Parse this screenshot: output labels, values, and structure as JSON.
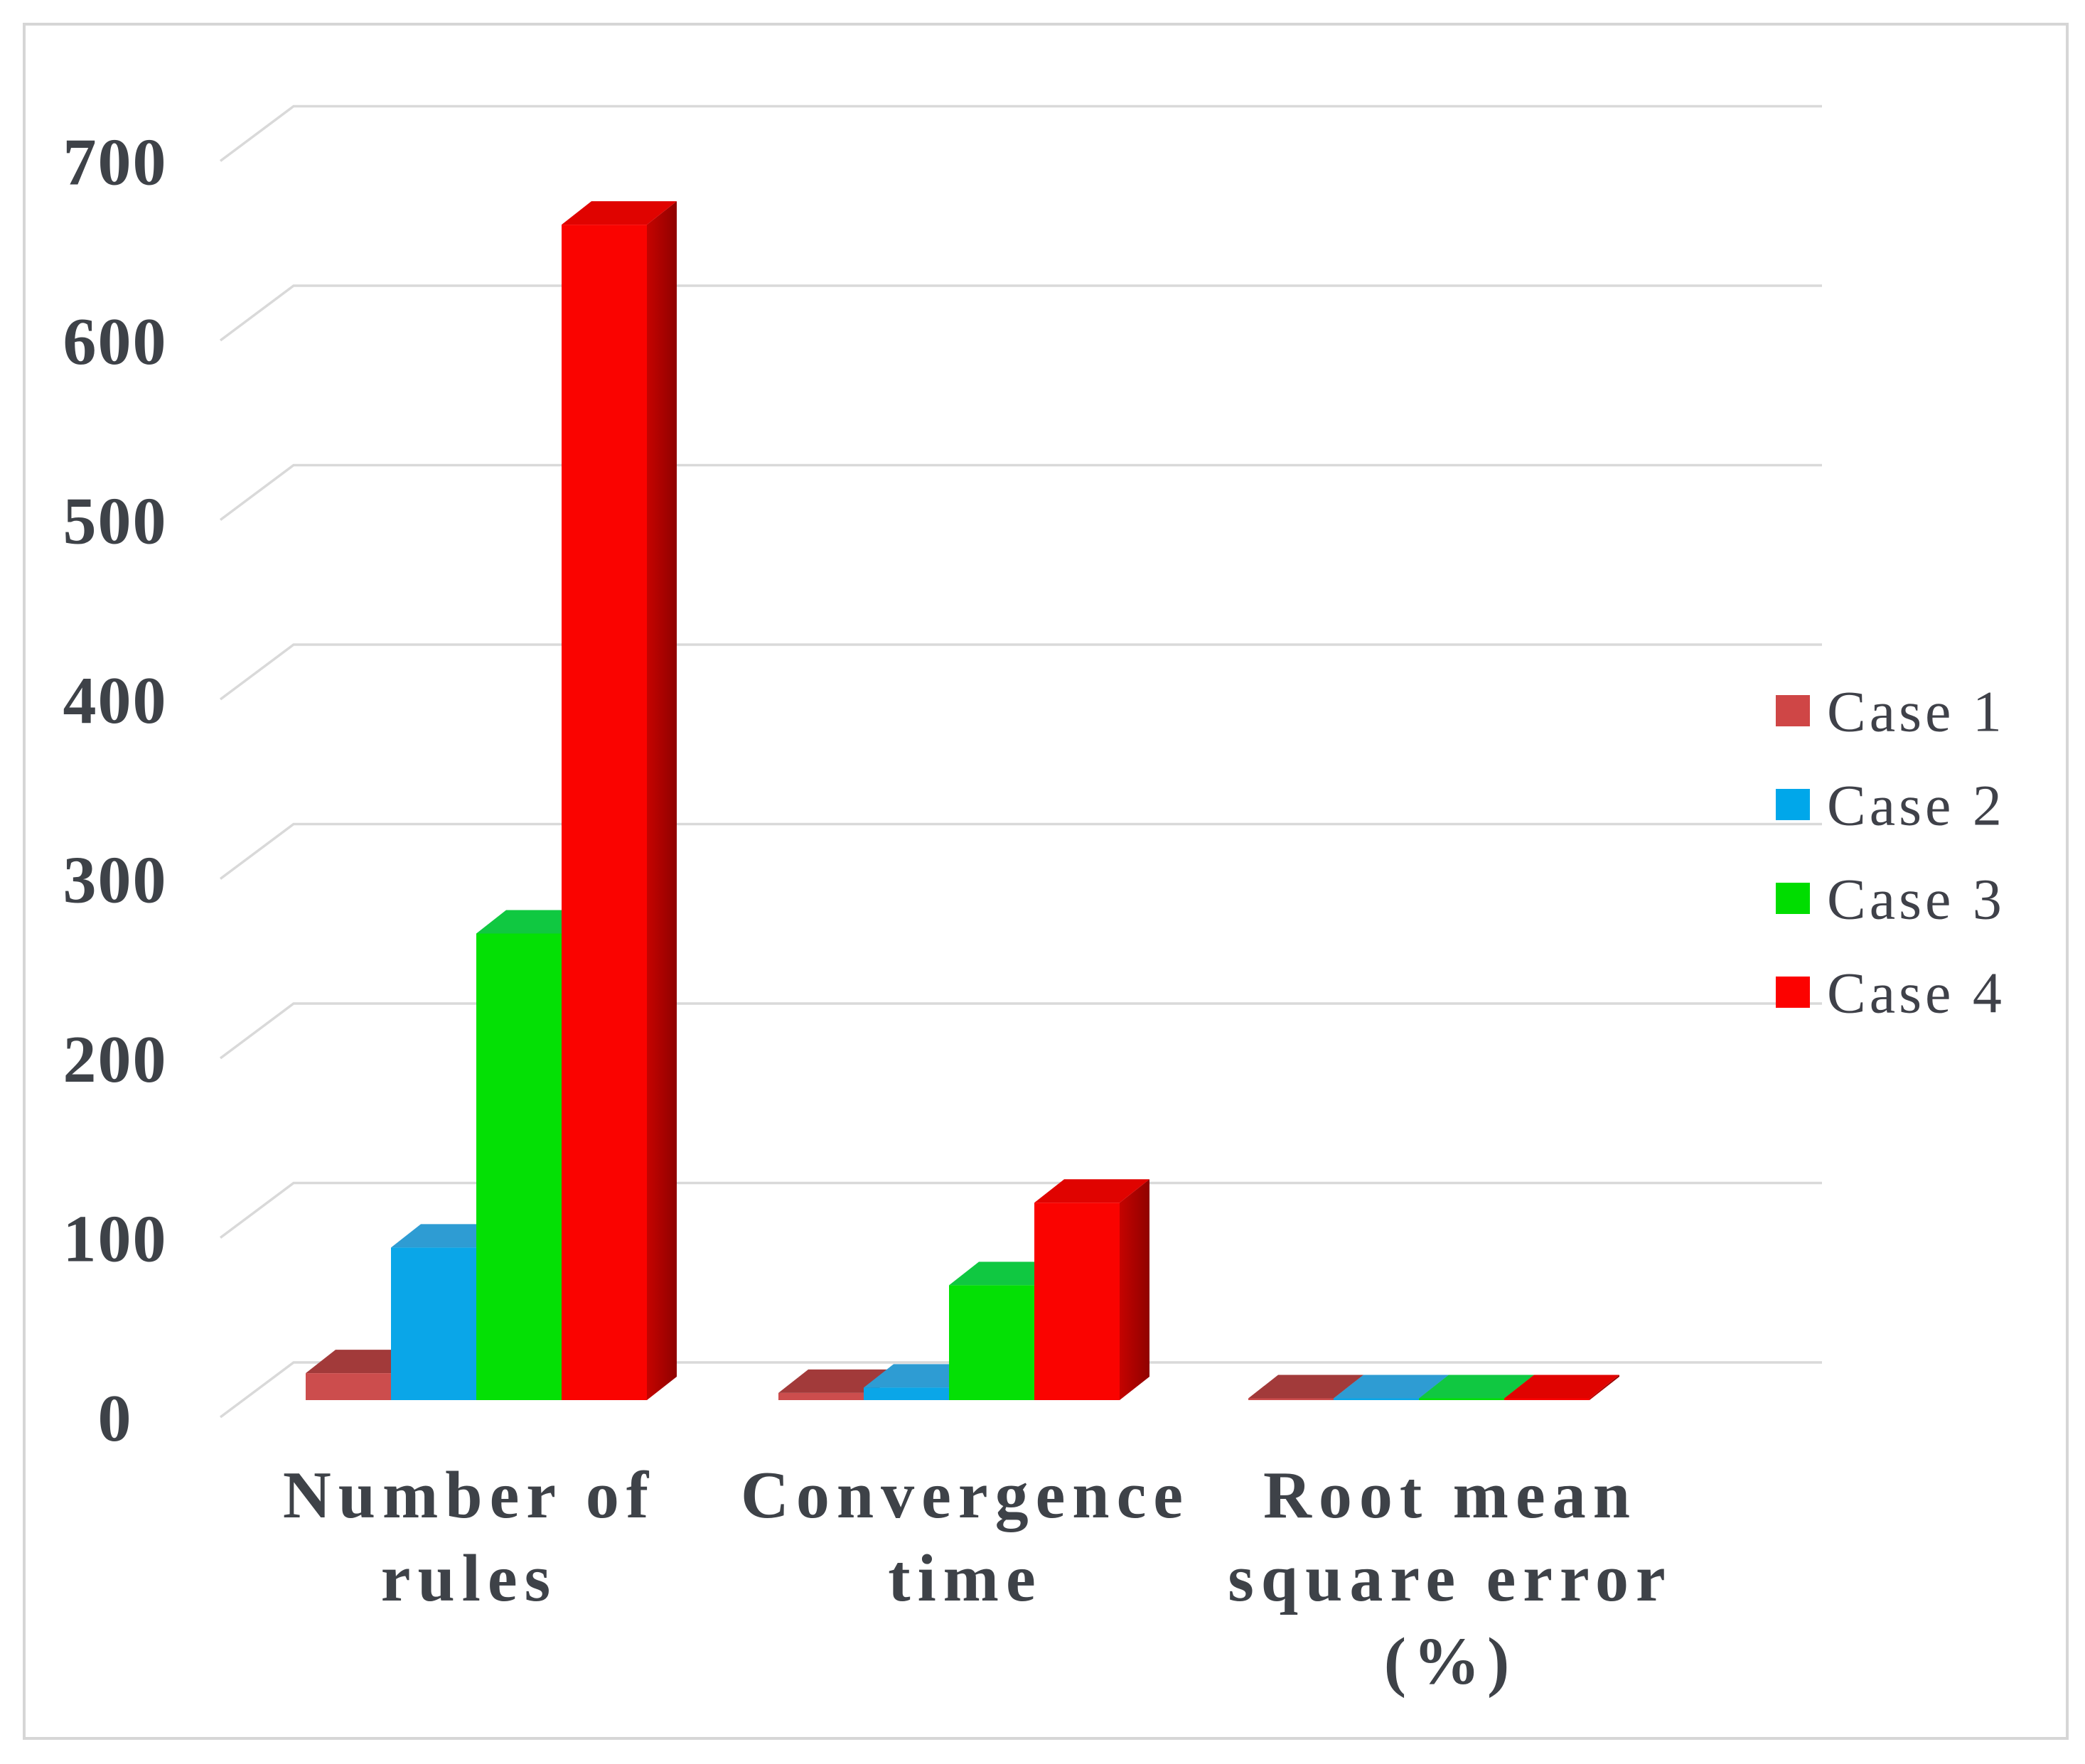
{
  "figure": {
    "background": "#FFFFFF",
    "border_color": "#D6D6D6",
    "gridline_color": "#D9D9D9",
    "text_color": "#3E4248"
  },
  "chart_data": {
    "type": "bar",
    "projection": "3d-clustered",
    "title": "",
    "xlabel": "",
    "ylabel": "",
    "ylim": [
      0,
      700
    ],
    "ytick_step": 100,
    "ytick_labels": [
      "0",
      "100",
      "200",
      "300",
      "400",
      "500",
      "600",
      "700"
    ],
    "grid": true,
    "legend_position": "right",
    "categories": [
      "Number of rules",
      "Convergence time",
      "Root mean square error (%)"
    ],
    "category_label_lines": [
      [
        "Number of",
        "rules"
      ],
      [
        "Convergence",
        "time"
      ],
      [
        "Root mean",
        "square error",
        "(%)"
      ]
    ],
    "series": [
      {
        "name": "Case 1",
        "values": [
          15,
          4,
          1
        ],
        "colors": {
          "swatch": "#CF4646",
          "front": "#CC4D4D",
          "top": "#A23A3A",
          "sideA": "#93332F",
          "sideB": "#7C2A27"
        }
      },
      {
        "name": "Case 2",
        "values": [
          85,
          7,
          1
        ],
        "colors": {
          "swatch": "#00A7EA",
          "front": "#0AA6E8",
          "top": "#2E9CD3",
          "sideA": "#0E74AC",
          "sideB": "#0A6295"
        }
      },
      {
        "name": "Case 3",
        "values": [
          260,
          64,
          1
        ],
        "colors": {
          "swatch": "#00DD00",
          "front": "#04E005",
          "top": "#10C841",
          "sideA": "#0AA52C",
          "sideB": "#089122"
        }
      },
      {
        "name": "Case 4",
        "values": [
          655,
          110,
          1
        ],
        "colors": {
          "swatch": "#FC0200",
          "front": "#FA0300",
          "top": "#E00300",
          "sideA": "#C50300",
          "sideB": "#8F0200"
        }
      }
    ]
  }
}
